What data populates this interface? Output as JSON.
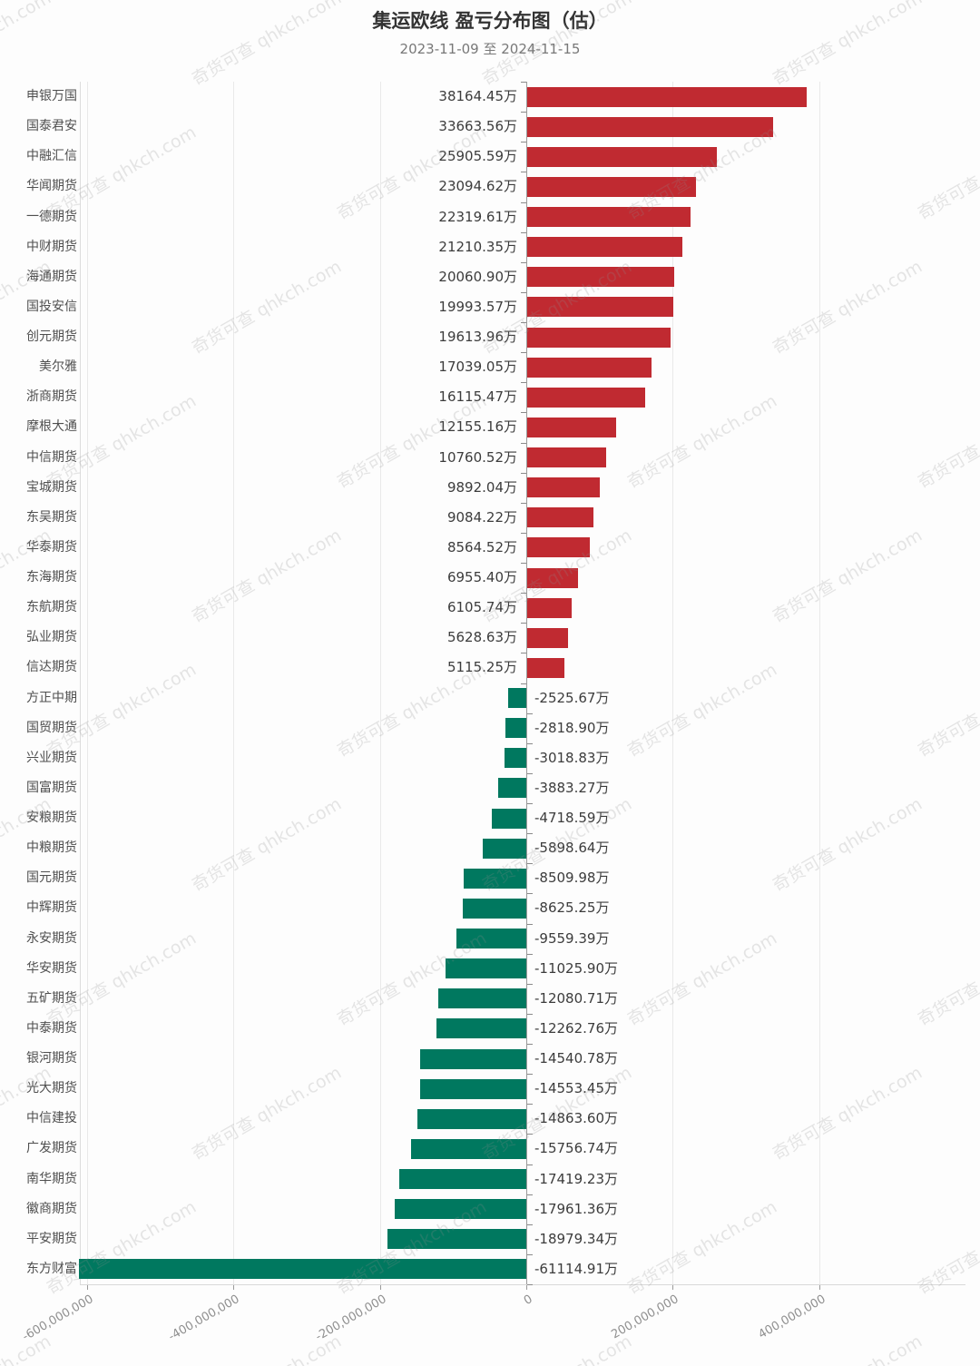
{
  "title": "集运欧线 盈亏分布图（估）",
  "subtitle": "2023-11-09 至 2024-11-15",
  "watermark": {
    "text": "奇货可查 qhkch.com"
  },
  "colors": {
    "positive_bar": "#c02a31",
    "negative_bar": "#00785f",
    "zero_axis": "#9a9a9a",
    "gridline": "#e9e9e9"
  },
  "chart_data": {
    "type": "bar",
    "orientation": "horizontal",
    "title": "集运欧线 盈亏分布图（估）",
    "subtitle": "2023-11-09 至 2024-11-15",
    "unit": "万",
    "legend": "none",
    "grid": "vertical-lines",
    "value_axis": {
      "tick_labels": [
        "-600,000,000",
        "-400,000,000",
        "-200,000,000",
        "0",
        "200,000,000",
        "400,000,000"
      ],
      "tick_values": [
        -600000000,
        -400000000,
        -200000000,
        0,
        200000000,
        400000000
      ],
      "min": -650000000,
      "max": 600000000
    },
    "companies": [
      {
        "name": "申银万国",
        "label": "38164.45万",
        "value": 381644500
      },
      {
        "name": "国泰君安",
        "label": "33663.56万",
        "value": 336635600
      },
      {
        "name": "中融汇信",
        "label": "25905.59万",
        "value": 259055900
      },
      {
        "name": "华闻期货",
        "label": "23094.62万",
        "value": 230946200
      },
      {
        "name": "一德期货",
        "label": "22319.61万",
        "value": 223196100
      },
      {
        "name": "中财期货",
        "label": "21210.35万",
        "value": 212103500
      },
      {
        "name": "海通期货",
        "label": "20060.90万",
        "value": 200609000
      },
      {
        "name": "国投安信",
        "label": "19993.57万",
        "value": 199935700
      },
      {
        "name": "创元期货",
        "label": "19613.96万",
        "value": 196139600
      },
      {
        "name": "美尔雅",
        "label": "17039.05万",
        "value": 170390500
      },
      {
        "name": "浙商期货",
        "label": "16115.47万",
        "value": 161154700
      },
      {
        "name": "摩根大通",
        "label": "12155.16万",
        "value": 121551600
      },
      {
        "name": "中信期货",
        "label": "10760.52万",
        "value": 107605200
      },
      {
        "name": "宝城期货",
        "label": "9892.04万",
        "value": 98920400
      },
      {
        "name": "东吴期货",
        "label": "9084.22万",
        "value": 90842200
      },
      {
        "name": "华泰期货",
        "label": "8564.52万",
        "value": 85645200
      },
      {
        "name": "东海期货",
        "label": "6955.40万",
        "value": 69554000
      },
      {
        "name": "东航期货",
        "label": "6105.74万",
        "value": 61057400
      },
      {
        "name": "弘业期货",
        "label": "5628.63万",
        "value": 56286300
      },
      {
        "name": "信达期货",
        "label": "5115.25万",
        "value": 51152500
      },
      {
        "name": "方正中期",
        "label": "-2525.67万",
        "value": -25256700
      },
      {
        "name": "国贸期货",
        "label": "-2818.90万",
        "value": -28189000
      },
      {
        "name": "兴业期货",
        "label": "-3018.83万",
        "value": -30188300
      },
      {
        "name": "国富期货",
        "label": "-3883.27万",
        "value": -38832700
      },
      {
        "name": "安粮期货",
        "label": "-4718.59万",
        "value": -47185900
      },
      {
        "name": "中粮期货",
        "label": "-5898.64万",
        "value": -58986400
      },
      {
        "name": "国元期货",
        "label": "-8509.98万",
        "value": -85099800
      },
      {
        "name": "中辉期货",
        "label": "-8625.25万",
        "value": -86252500
      },
      {
        "name": "永安期货",
        "label": "-9559.39万",
        "value": -95593900
      },
      {
        "name": "华安期货",
        "label": "-11025.90万",
        "value": -110259000
      },
      {
        "name": "五矿期货",
        "label": "-12080.71万",
        "value": -120807100
      },
      {
        "name": "中泰期货",
        "label": "-12262.76万",
        "value": -122627600
      },
      {
        "name": "银河期货",
        "label": "-14540.78万",
        "value": -145407800
      },
      {
        "name": "光大期货",
        "label": "-14553.45万",
        "value": -145534500
      },
      {
        "name": "中信建投",
        "label": "-14863.60万",
        "value": -148636000
      },
      {
        "name": "广发期货",
        "label": "-15756.74万",
        "value": -157567400
      },
      {
        "name": "南华期货",
        "label": "-17419.23万",
        "value": -174192300
      },
      {
        "name": "徽商期货",
        "label": "-17961.36万",
        "value": -179613600
      },
      {
        "name": "平安期货",
        "label": "-18979.34万",
        "value": -189793400
      },
      {
        "name": "东方财富",
        "label": "-61114.91万",
        "value": -611149100
      }
    ]
  }
}
